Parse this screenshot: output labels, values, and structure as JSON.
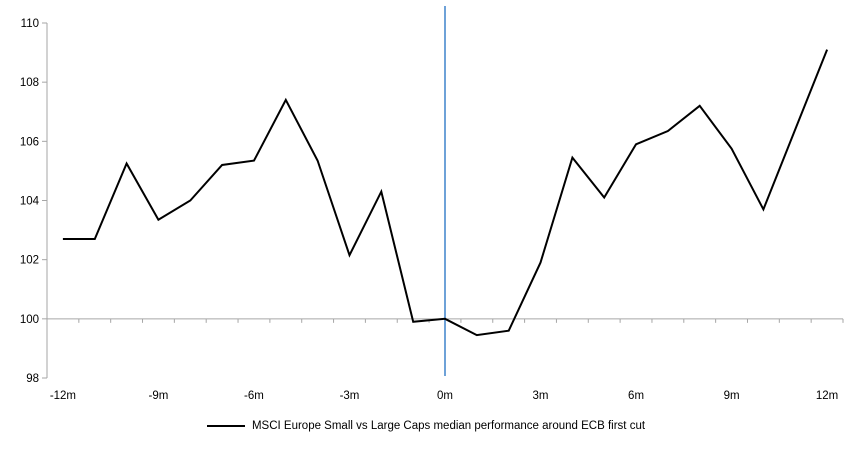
{
  "chart_data": {
    "type": "line",
    "title": "",
    "xlabel": "",
    "ylabel": "",
    "x": [
      -12,
      -11,
      -10,
      -9,
      -8,
      -7,
      -6,
      -5,
      -4,
      -3,
      -2,
      -1,
      0,
      1,
      2,
      3,
      4,
      5,
      6,
      7,
      8,
      9,
      10,
      11,
      12
    ],
    "series": [
      {
        "name": "MSCI Europe Small vs Large Caps median performance around ECB first cut",
        "color": "#000000",
        "values": [
          102.7,
          102.7,
          105.25,
          103.35,
          104.0,
          105.2,
          105.35,
          107.4,
          105.35,
          102.15,
          104.3,
          99.9,
          100.0,
          99.45,
          99.6,
          101.9,
          105.45,
          104.1,
          105.9,
          106.35,
          107.2,
          105.75,
          103.7,
          106.4,
          109.1
        ]
      }
    ],
    "ylim": [
      98,
      110
    ],
    "y_ticks": [
      110,
      108,
      106,
      104,
      102,
      100,
      98
    ],
    "x_tick_positions": [
      -12,
      -9,
      -6,
      -3,
      0,
      3,
      6,
      9,
      12
    ],
    "x_tick_labels": [
      "-12m",
      "-9m",
      "-6m",
      "-3m",
      "0m",
      "3m",
      "6m",
      "9m",
      "12m"
    ],
    "minor_x_tick_every": 1,
    "baseline_value": 100,
    "event_line_x": 0,
    "grid": "horizontal line at 100 only",
    "legend_position": "bottom-center",
    "colors": {
      "series": "#000000",
      "event_line": "#6EA2D8",
      "axis": "#A6A6A6",
      "baseline": "#A6A6A6",
      "text": "#000000"
    }
  }
}
